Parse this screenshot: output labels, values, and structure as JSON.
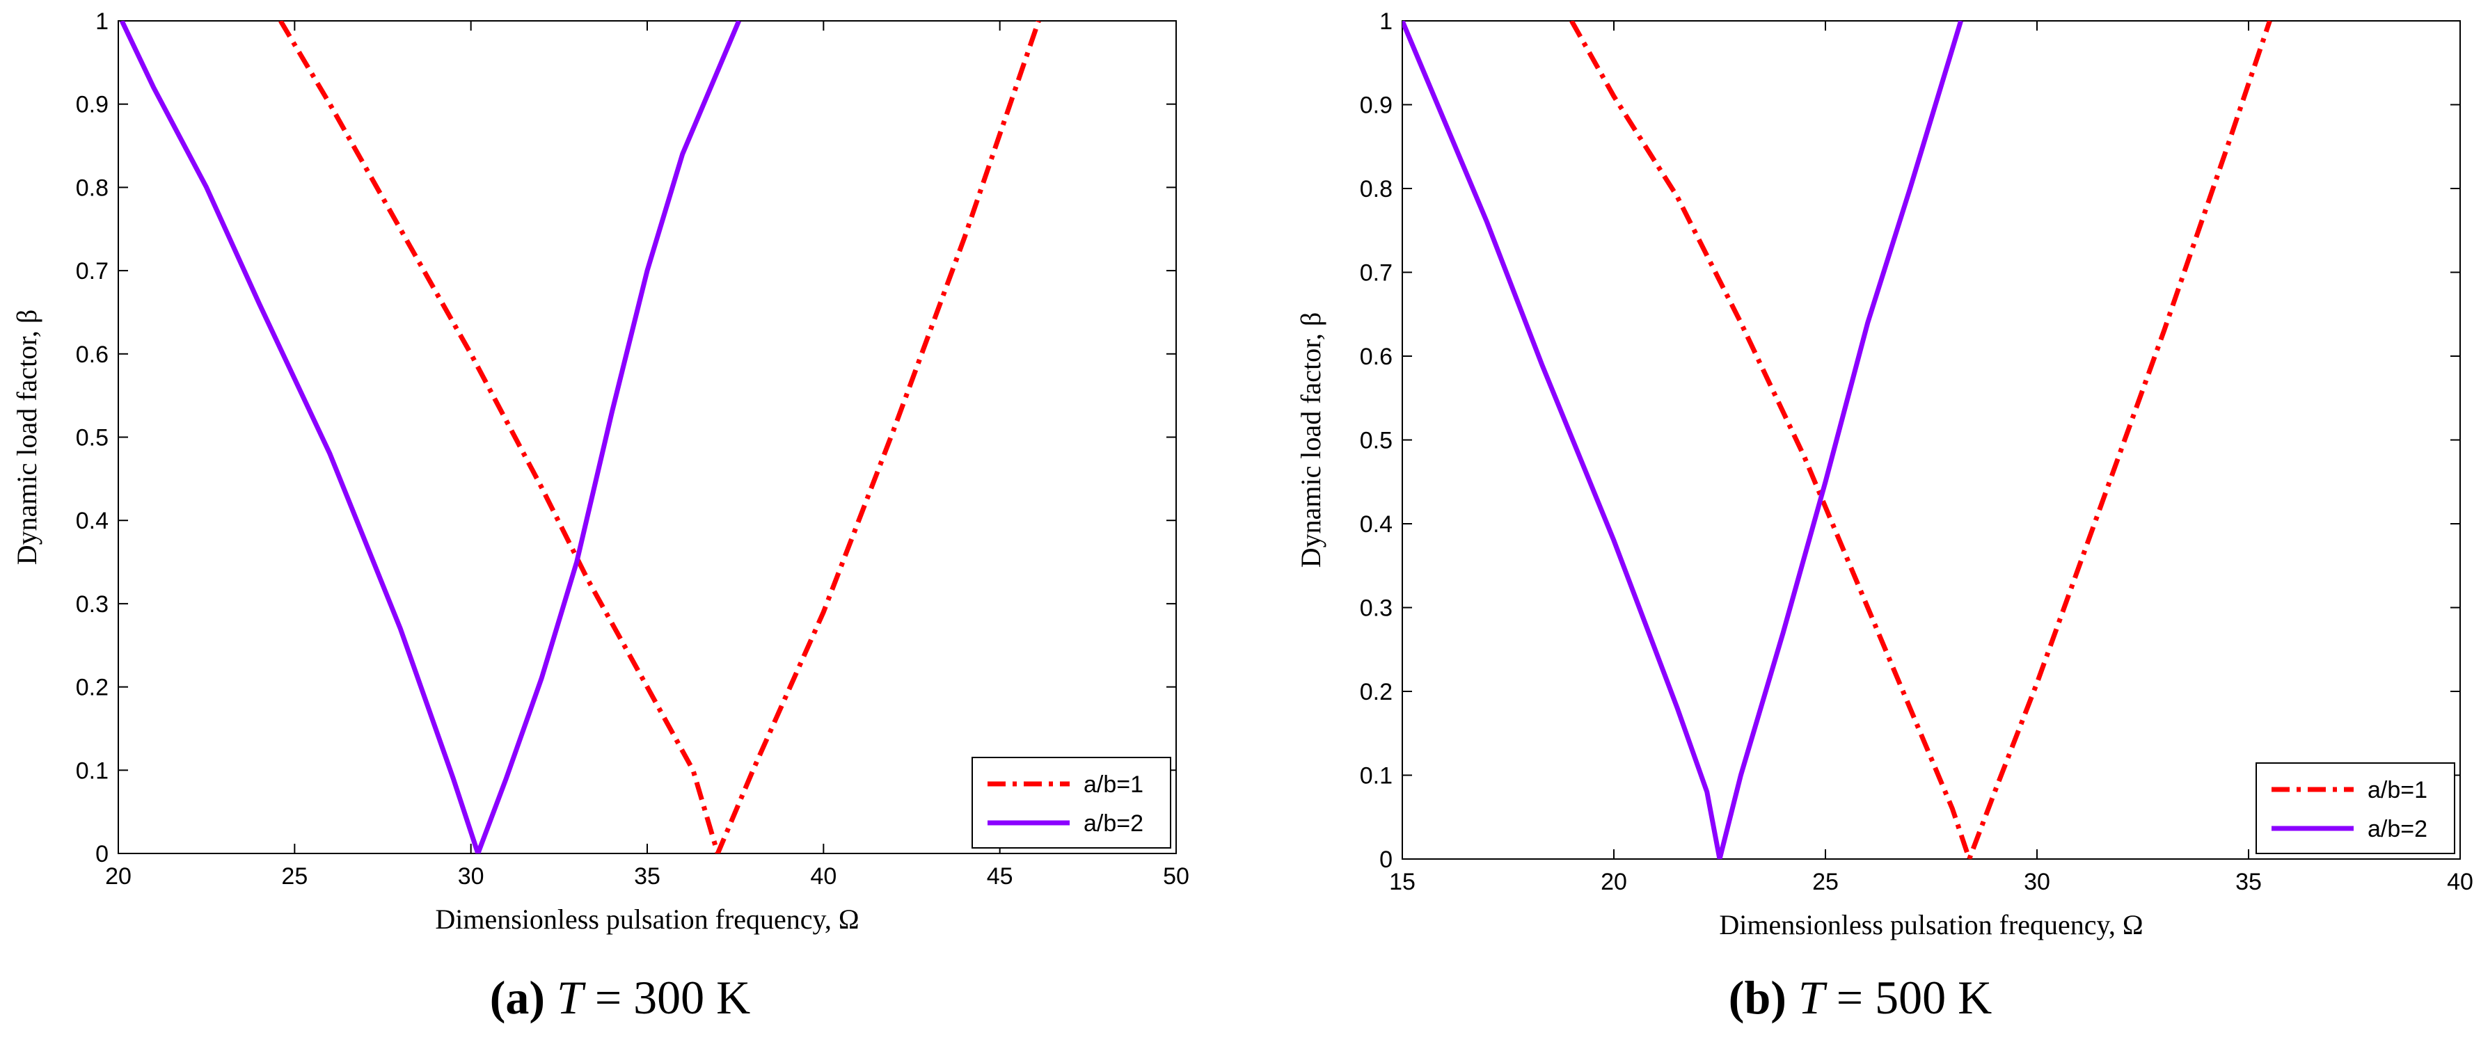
{
  "chart_data": [
    {
      "type": "line",
      "panel": "a",
      "caption": {
        "open": "(",
        "letter": "a",
        "close": ")",
        "var": "T",
        "rest": " = 300 K"
      },
      "xlabel": "Dimensionless pulsation frequency, Ω",
      "ylabel": "Dynamic load factor, β",
      "xlim": [
        20,
        50
      ],
      "ylim": [
        0,
        1
      ],
      "xticks": [
        "20",
        "25",
        "30",
        "35",
        "40",
        "45",
        "50"
      ],
      "yticks": [
        "0",
        "0.1",
        "0.2",
        "0.3",
        "0.4",
        "0.5",
        "0.6",
        "0.7",
        "0.8",
        "0.9",
        "1"
      ],
      "legend_position": "bottom-right",
      "series": [
        {
          "name": "a/b=1",
          "color": "#ff0000",
          "style": "dash-dot",
          "x": [
            24.6,
            26,
            28,
            30,
            32,
            33.3,
            35,
            36.3,
            37.0,
            38,
            40,
            42,
            44,
            46.1
          ],
          "y": [
            1.0,
            0.9,
            0.75,
            0.6,
            0.44,
            0.33,
            0.2,
            0.1,
            0.0,
            0.1,
            0.29,
            0.51,
            0.74,
            1.0
          ]
        },
        {
          "name": "a/b=2",
          "color": "#8b00ff",
          "style": "solid",
          "x": [
            20.1,
            21,
            22.5,
            24,
            26,
            28,
            29.5,
            30.2,
            31,
            32,
            33,
            34,
            35,
            36,
            37.6
          ],
          "y": [
            1.0,
            0.92,
            0.8,
            0.66,
            0.48,
            0.27,
            0.09,
            0.0,
            0.09,
            0.21,
            0.35,
            0.53,
            0.7,
            0.84,
            1.0
          ]
        }
      ]
    },
    {
      "type": "line",
      "panel": "b",
      "caption": {
        "open": "(",
        "letter": "b",
        "close": ")",
        "var": "T",
        "rest": " = 500 K"
      },
      "xlabel": "Dimensionless pulsation frequency, Ω",
      "ylabel": "Dynamic load factor, β",
      "xlim": [
        15,
        40
      ],
      "ylim": [
        0,
        1
      ],
      "xticks": [
        "15",
        "20",
        "25",
        "30",
        "35",
        "40"
      ],
      "yticks": [
        "0",
        "0.1",
        "0.2",
        "0.3",
        "0.4",
        "0.5",
        "0.6",
        "0.7",
        "0.8",
        "0.9",
        "1"
      ],
      "legend_position": "bottom-right",
      "series": [
        {
          "name": "a/b=1",
          "color": "#ff0000",
          "style": "dash-dot",
          "x": [
            19.0,
            20,
            21.5,
            23,
            24.5,
            25.5,
            27,
            28.0,
            28.4,
            29,
            30,
            31.5,
            33,
            34.5,
            35.5
          ],
          "y": [
            1.0,
            0.91,
            0.79,
            0.64,
            0.48,
            0.36,
            0.18,
            0.06,
            0.0,
            0.08,
            0.21,
            0.42,
            0.63,
            0.85,
            1.0
          ]
        },
        {
          "name": "a/b=2",
          "color": "#8b00ff",
          "style": "solid",
          "x": [
            15.0,
            16,
            17,
            18.3,
            20,
            21.5,
            22.2,
            22.5,
            23,
            24,
            25,
            26,
            27,
            28.2
          ],
          "y": [
            1.0,
            0.88,
            0.76,
            0.59,
            0.38,
            0.18,
            0.08,
            0.0,
            0.1,
            0.27,
            0.45,
            0.64,
            0.8,
            1.0
          ]
        }
      ]
    }
  ]
}
